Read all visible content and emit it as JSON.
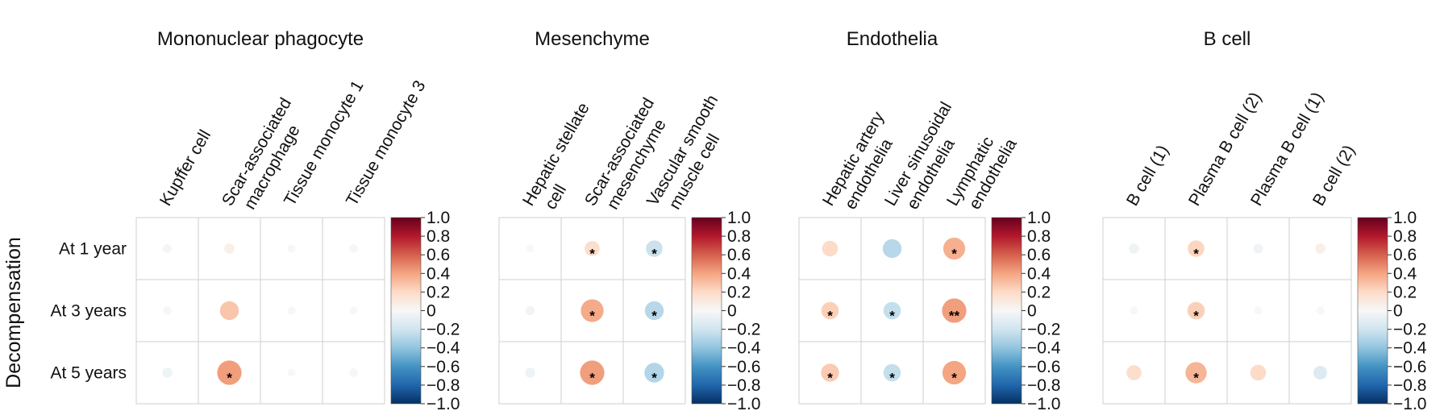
{
  "figure": {
    "y_title": "Decompensation"
  },
  "chart_data": [
    {
      "type": "heatmap",
      "title": "Mononuclear phagocyte",
      "columns": [
        "Kupffer cell",
        "Scar-associated macrophage",
        "Tissue monocyte 1",
        "Tissue monocyte 3"
      ],
      "column_lines": [
        [
          "Kupffer cell"
        ],
        [
          "Scar-associated",
          "macrophage"
        ],
        [
          "Tissue monocyte 1"
        ],
        [
          "Tissue monocyte 3"
        ]
      ],
      "rows": [
        "At 1 year",
        "At 3 years",
        "At 5 years"
      ],
      "values": [
        [
          0.02,
          0.06,
          0.0,
          -0.01
        ],
        [
          0.01,
          0.28,
          0.0,
          0.0
        ],
        [
          -0.05,
          0.42,
          0.0,
          0.01
        ]
      ],
      "significance": [
        [
          "",
          "",
          "",
          ""
        ],
        [
          "",
          "",
          "",
          ""
        ],
        [
          "",
          "*",
          "",
          ""
        ]
      ],
      "colorbar": {
        "range": [
          -1,
          1
        ],
        "ticks": [
          "1.0",
          "0.8",
          "0.6",
          "0.4",
          "0.2",
          "0",
          "−0.2",
          "−0.4",
          "−0.6",
          "−0.8",
          "−1.0"
        ]
      }
    },
    {
      "type": "heatmap",
      "title": "Mesenchyme",
      "columns": [
        "Hepatic stellate cell",
        "Scar-associated mesenchyme",
        "Vascular smooth muscle cell"
      ],
      "column_lines": [
        [
          "Hepatic stellate",
          "cell"
        ],
        [
          "Scar-associated",
          "mesenchyme"
        ],
        [
          "Vascular smooth",
          "muscle cell"
        ]
      ],
      "rows": [
        "At 1 year",
        "At 3 years",
        "At 5 years"
      ],
      "values": [
        [
          0.0,
          0.18,
          -0.22
        ],
        [
          -0.03,
          0.38,
          -0.28
        ],
        [
          -0.05,
          0.42,
          -0.3
        ]
      ],
      "significance": [
        [
          "",
          "*",
          "*"
        ],
        [
          "",
          "*",
          "*"
        ],
        [
          "",
          "*",
          "*"
        ]
      ],
      "colorbar": {
        "range": [
          -1,
          1
        ],
        "ticks": [
          "1.0",
          "0.8",
          "0.6",
          "0.4",
          "0.2",
          "0",
          "−0.2",
          "−0.4",
          "−0.6",
          "−0.8",
          "−1.0"
        ]
      }
    },
    {
      "type": "heatmap",
      "title": "Endothelia",
      "columns": [
        "Hepatic artery endothelia",
        "Liver sinusoidal endothelia",
        "Lymphatic endothelia"
      ],
      "column_lines": [
        [
          "Hepatic artery",
          "endothelia"
        ],
        [
          "Liver sinusoidal",
          "endothelia"
        ],
        [
          "Lymphatic",
          "endothelia"
        ]
      ],
      "rows": [
        "At 1 year",
        "At 3 years",
        "At 5 years"
      ],
      "values": [
        [
          0.2,
          -0.28,
          0.36
        ],
        [
          0.24,
          -0.24,
          0.42
        ],
        [
          0.26,
          -0.24,
          0.4
        ]
      ],
      "significance": [
        [
          "",
          "",
          "*"
        ],
        [
          "*",
          "*",
          "**"
        ],
        [
          "*",
          "*",
          "*"
        ]
      ],
      "colorbar": {
        "range": [
          -1,
          1
        ],
        "ticks": [
          "1.0",
          "0.8",
          "0.6",
          "0.4",
          "0.2",
          "0",
          "−0.2",
          "−0.4",
          "−0.6",
          "−0.8",
          "−1.0"
        ]
      }
    },
    {
      "type": "heatmap",
      "title": "B cell",
      "columns": [
        "B cell (1)",
        "Plasma B cell (2)",
        "Plasma B cell (1)",
        "B cell (2)"
      ],
      "column_lines": [
        [
          "B cell (1)"
        ],
        [
          "Plasma B cell (2)"
        ],
        [
          "Plasma B cell (1)"
        ],
        [
          "B cell (2)"
        ]
      ],
      "rows": [
        "At 1 year",
        "At 3 years",
        "At 5 years"
      ],
      "values": [
        [
          -0.05,
          0.22,
          -0.04,
          0.06
        ],
        [
          0.0,
          0.24,
          0.0,
          0.0
        ],
        [
          0.18,
          0.34,
          0.2,
          -0.14
        ]
      ],
      "significance": [
        [
          "",
          "*",
          "",
          ""
        ],
        [
          "",
          "*",
          "",
          ""
        ],
        [
          "",
          "*",
          "",
          ""
        ]
      ],
      "colorbar": {
        "range": [
          -1,
          1
        ],
        "ticks": [
          "1.0",
          "0.8",
          "0.6",
          "0.4",
          "0.2",
          "0",
          "−0.2",
          "−0.4",
          "−0.6",
          "−0.8",
          "−1.0"
        ]
      }
    }
  ]
}
